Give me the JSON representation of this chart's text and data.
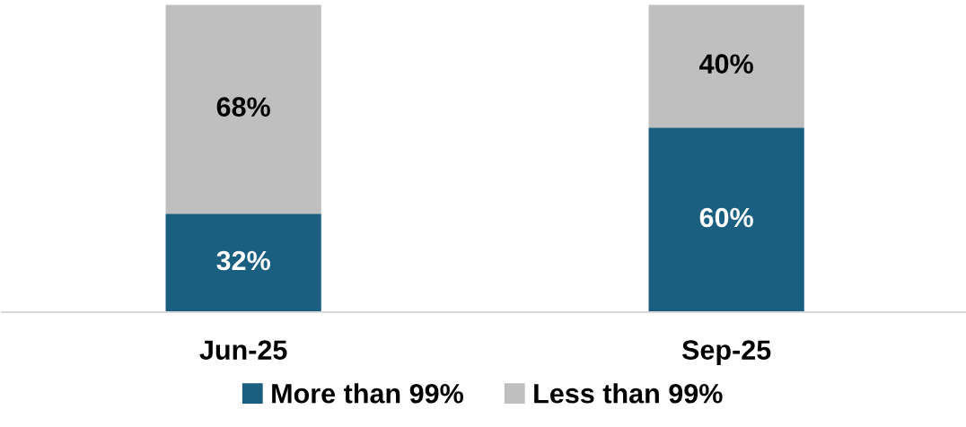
{
  "chart_data": {
    "type": "bar",
    "stacked": true,
    "categories": [
      "Jun-25",
      "Sep-25"
    ],
    "series": [
      {
        "name": "More than 99%",
        "color": "#1a5e80",
        "values": [
          32,
          60
        ],
        "value_labels": [
          "32%",
          "60%"
        ]
      },
      {
        "name": "Less than 99%",
        "color": "#bfbfbf",
        "values": [
          68,
          40
        ],
        "value_labels": [
          "68%",
          "40%"
        ]
      }
    ],
    "legend": "bottom",
    "tick_labels": "x"
  }
}
